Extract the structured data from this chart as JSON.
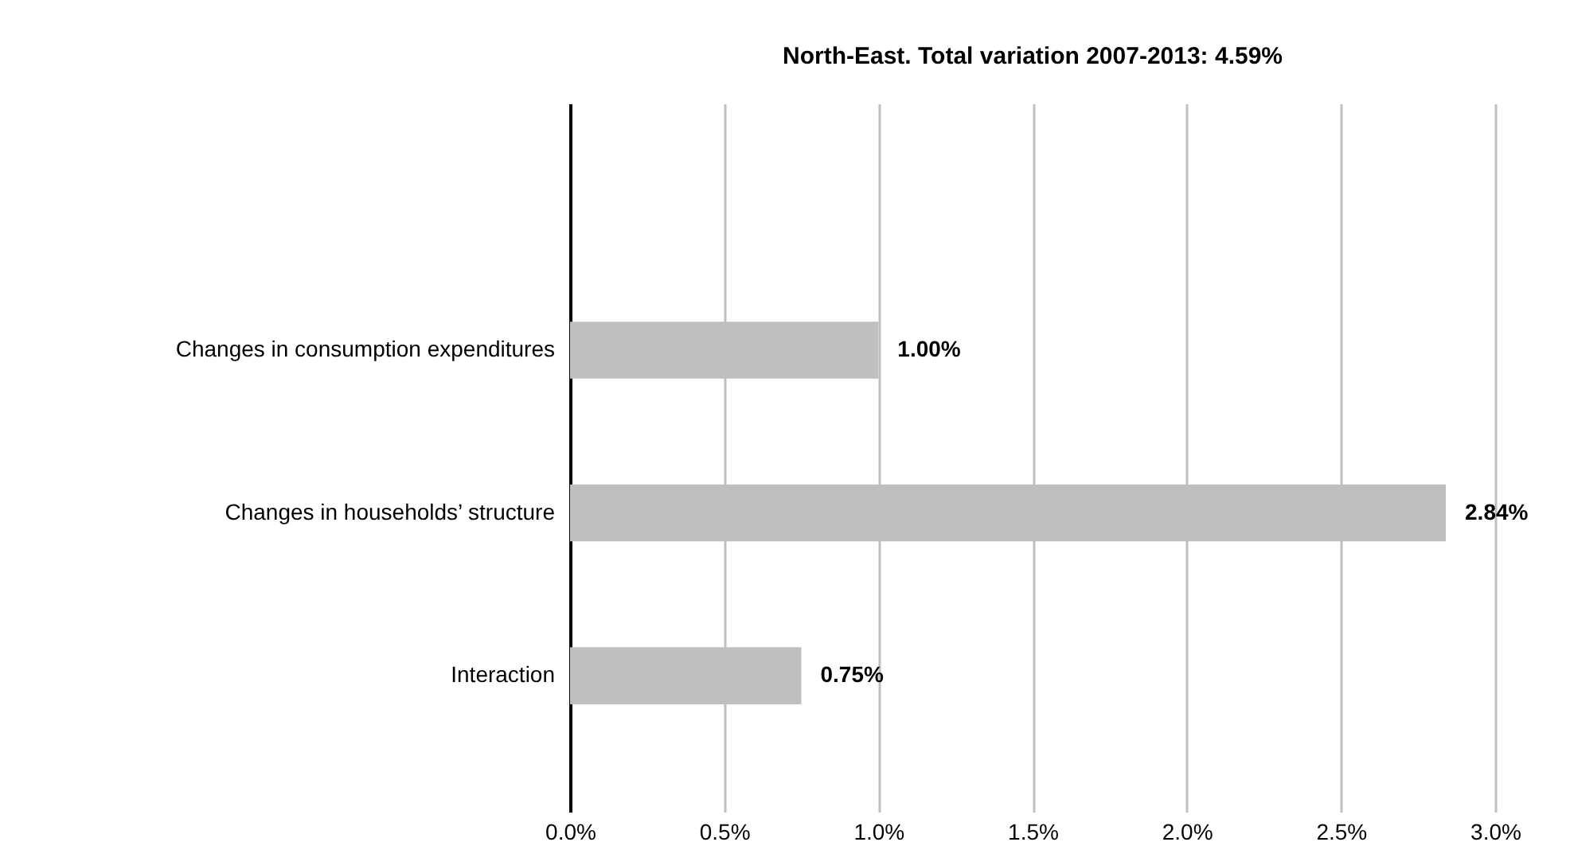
{
  "chart_data": {
    "type": "bar",
    "orientation": "horizontal",
    "title": "North-East. Total variation 2007-2013: 4.59%",
    "categories": [
      "Changes in consumption expenditures",
      "Changes in households’ structure",
      "Interaction"
    ],
    "values": [
      1.0,
      2.84,
      0.75
    ],
    "color": "#bfbfbf",
    "value_labels": [
      "1.00%",
      "2.84%",
      "0.75%"
    ],
    "xlim": [
      0,
      3
    ],
    "xticks": [
      {
        "value": 0,
        "label": "0.0%"
      },
      {
        "value": 0.5,
        "label": "0.5%"
      },
      {
        "value": 1,
        "label": "1.0%"
      },
      {
        "value": 1.5,
        "label": "1.5%"
      },
      {
        "value": 2,
        "label": "2.0%"
      },
      {
        "value": 2.5,
        "label": "2.5%"
      },
      {
        "value": 3,
        "label": "3.0%"
      }
    ],
    "grid": "x"
  }
}
